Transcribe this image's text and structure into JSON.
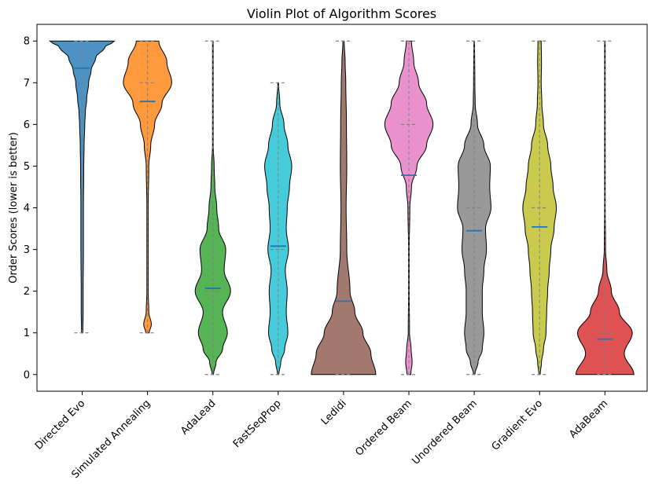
{
  "chart_data": {
    "type": "violin",
    "title": "Violin Plot of Algorithm Scores",
    "xlabel": "",
    "ylabel": "Order Scores (lower is better)",
    "ylim": [
      -0.4,
      8.4
    ],
    "yticks": [
      "0",
      "1",
      "2",
      "3",
      "4",
      "5",
      "6",
      "7",
      "8"
    ],
    "categories": [
      "Directed Evo",
      "Simulated Annealing",
      "AdaLead",
      "FastSeqProp",
      "Ledidi",
      "Ordered Beam",
      "Unordered Beam",
      "Gradient Evo",
      "AdaBeam"
    ],
    "colors": [
      "#1f77b4",
      "#ff7f0e",
      "#2ca02c",
      "#17becf",
      "#8c564b",
      "#e377c2",
      "#7f7f7f",
      "#bcbd22",
      "#d62728"
    ],
    "series": [
      {
        "name": "Directed Evo",
        "min": 1,
        "max": 8,
        "median": 8,
        "mean": 7.35
      },
      {
        "name": "Simulated Annealing",
        "min": 1,
        "max": 8,
        "median": 7,
        "mean": 6.55
      },
      {
        "name": "AdaLead",
        "min": 0,
        "max": 8,
        "median": 2,
        "mean": 2.07
      },
      {
        "name": "FastSeqProp",
        "min": 0,
        "max": 7,
        "median": 3,
        "mean": 3.08
      },
      {
        "name": "Ledidi",
        "min": 0,
        "max": 8,
        "median": 0,
        "mean": 1.76
      },
      {
        "name": "Ordered Beam",
        "min": 0,
        "max": 8,
        "median": 6,
        "mean": 4.78
      },
      {
        "name": "Unordered Beam",
        "min": 0,
        "max": 8,
        "median": 4,
        "mean": 3.45
      },
      {
        "name": "Gradient Evo",
        "min": 0,
        "max": 8,
        "median": 4,
        "mean": 3.54
      },
      {
        "name": "AdaBeam",
        "min": 0,
        "max": 8,
        "median": 1,
        "mean": 0.85
      }
    ],
    "density_profiles": [
      [
        [
          1,
          0.02
        ],
        [
          1.5,
          0.03
        ],
        [
          2,
          0.03
        ],
        [
          3,
          0.04
        ],
        [
          4,
          0.04
        ],
        [
          5,
          0.05
        ],
        [
          5.5,
          0.06
        ],
        [
          6,
          0.08
        ],
        [
          6.3,
          0.1
        ],
        [
          6.6,
          0.14
        ],
        [
          7,
          0.2
        ],
        [
          7.3,
          0.28
        ],
        [
          7.6,
          0.42
        ],
        [
          7.85,
          0.7
        ],
        [
          8,
          1.0
        ]
      ],
      [
        [
          1,
          0.05
        ],
        [
          1.2,
          0.12
        ],
        [
          1.5,
          0.04
        ],
        [
          2,
          0.02
        ],
        [
          3,
          0.02
        ],
        [
          4,
          0.02
        ],
        [
          5,
          0.04
        ],
        [
          5.5,
          0.1
        ],
        [
          6,
          0.22
        ],
        [
          6.5,
          0.45
        ],
        [
          7,
          0.75
        ],
        [
          7.5,
          0.6
        ],
        [
          8,
          0.35
        ]
      ],
      [
        [
          0,
          0.02
        ],
        [
          0.3,
          0.1
        ],
        [
          0.6,
          0.3
        ],
        [
          1,
          0.45
        ],
        [
          1.5,
          0.3
        ],
        [
          2,
          0.55
        ],
        [
          2.5,
          0.35
        ],
        [
          3,
          0.4
        ],
        [
          3.5,
          0.18
        ],
        [
          4,
          0.12
        ],
        [
          4.5,
          0.06
        ],
        [
          5,
          0.04
        ],
        [
          5.5,
          0.01
        ],
        [
          6,
          0.01
        ],
        [
          7,
          0.01
        ],
        [
          8,
          0.01
        ]
      ],
      [
        [
          0,
          0.02
        ],
        [
          0.3,
          0.08
        ],
        [
          0.6,
          0.2
        ],
        [
          1,
          0.3
        ],
        [
          1.5,
          0.25
        ],
        [
          2,
          0.28
        ],
        [
          2.5,
          0.22
        ],
        [
          3,
          0.32
        ],
        [
          3.5,
          0.25
        ],
        [
          4,
          0.28
        ],
        [
          4.5,
          0.35
        ],
        [
          5,
          0.42
        ],
        [
          5.5,
          0.3
        ],
        [
          6,
          0.18
        ],
        [
          6.5,
          0.05
        ],
        [
          7,
          0.01
        ]
      ],
      [
        [
          0,
          1.0
        ],
        [
          0.5,
          0.85
        ],
        [
          1,
          0.6
        ],
        [
          1.5,
          0.35
        ],
        [
          2,
          0.2
        ],
        [
          3,
          0.1
        ],
        [
          4,
          0.08
        ],
        [
          5,
          0.1
        ],
        [
          6,
          0.09
        ],
        [
          7,
          0.07
        ],
        [
          7.5,
          0.05
        ],
        [
          8,
          0.02
        ]
      ],
      [
        [
          0,
          0.06
        ],
        [
          0.3,
          0.1
        ],
        [
          0.6,
          0.07
        ],
        [
          1,
          0.02
        ],
        [
          2,
          0.01
        ],
        [
          3,
          0.01
        ],
        [
          4,
          0.03
        ],
        [
          4.5,
          0.08
        ],
        [
          5,
          0.25
        ],
        [
          5.5,
          0.55
        ],
        [
          6,
          0.75
        ],
        [
          6.5,
          0.55
        ],
        [
          7,
          0.3
        ],
        [
          7.5,
          0.15
        ],
        [
          8,
          0.08
        ]
      ],
      [
        [
          0,
          0.02
        ],
        [
          0.3,
          0.12
        ],
        [
          0.6,
          0.25
        ],
        [
          1,
          0.3
        ],
        [
          1.5,
          0.25
        ],
        [
          2,
          0.25
        ],
        [
          2.5,
          0.3
        ],
        [
          3,
          0.38
        ],
        [
          3.5,
          0.35
        ],
        [
          4,
          0.52
        ],
        [
          4.5,
          0.48
        ],
        [
          5,
          0.5
        ],
        [
          5.5,
          0.3
        ],
        [
          6,
          0.1
        ],
        [
          6.5,
          0.03
        ],
        [
          7,
          0.02
        ],
        [
          8,
          0.01
        ]
      ],
      [
        [
          0,
          0.02
        ],
        [
          0.3,
          0.06
        ],
        [
          0.6,
          0.12
        ],
        [
          1,
          0.2
        ],
        [
          1.5,
          0.22
        ],
        [
          2,
          0.25
        ],
        [
          2.5,
          0.3
        ],
        [
          3,
          0.35
        ],
        [
          3.5,
          0.45
        ],
        [
          4,
          0.52
        ],
        [
          4.5,
          0.42
        ],
        [
          5,
          0.35
        ],
        [
          5.5,
          0.25
        ],
        [
          6,
          0.12
        ],
        [
          6.5,
          0.07
        ],
        [
          7,
          0.05
        ],
        [
          7.5,
          0.06
        ],
        [
          8,
          0.05
        ]
      ],
      [
        [
          0,
          0.9
        ],
        [
          0.5,
          0.6
        ],
        [
          1,
          0.85
        ],
        [
          1.5,
          0.45
        ],
        [
          2,
          0.2
        ],
        [
          2.5,
          0.06
        ],
        [
          3,
          0.02
        ],
        [
          4,
          0.01
        ],
        [
          5,
          0.01
        ],
        [
          6,
          0.01
        ],
        [
          7,
          0.01
        ],
        [
          8,
          0.01
        ]
      ]
    ]
  }
}
